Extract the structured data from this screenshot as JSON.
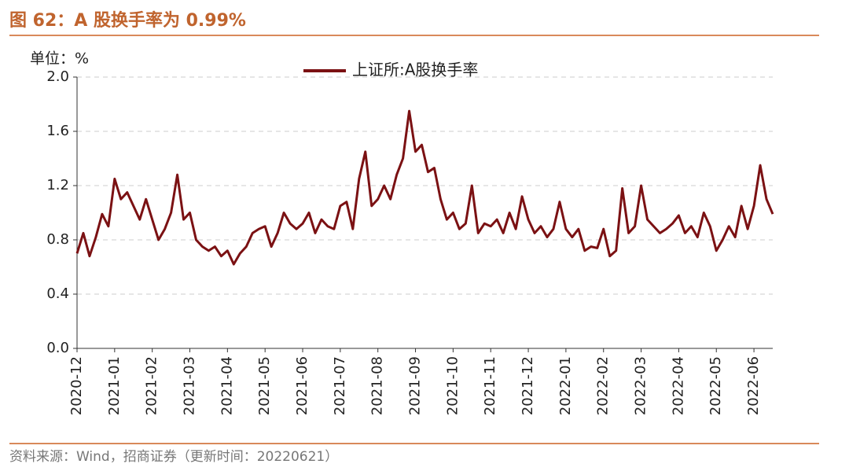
{
  "header": {
    "title": "图 62：A 股换手率为 0.99%"
  },
  "chart_data": {
    "type": "line",
    "unit_label": "单位：%",
    "categories": [
      "2020-12",
      null,
      null,
      null,
      null,
      null,
      "2021-01",
      null,
      null,
      null,
      null,
      null,
      "2021-02",
      null,
      null,
      null,
      null,
      null,
      "2021-03",
      null,
      null,
      null,
      null,
      null,
      "2021-04",
      null,
      null,
      null,
      null,
      null,
      "2021-05",
      null,
      null,
      null,
      null,
      null,
      "2021-06",
      null,
      null,
      null,
      null,
      null,
      "2021-07",
      null,
      null,
      null,
      null,
      null,
      "2021-08",
      null,
      null,
      null,
      null,
      null,
      "2021-09",
      null,
      null,
      null,
      null,
      null,
      "2021-10",
      null,
      null,
      null,
      null,
      null,
      "2021-11",
      null,
      null,
      null,
      null,
      null,
      "2021-12",
      null,
      null,
      null,
      null,
      null,
      "2022-01",
      null,
      null,
      null,
      null,
      null,
      "2022-02",
      null,
      null,
      null,
      null,
      null,
      "2022-03",
      null,
      null,
      null,
      null,
      null,
      "2022-04",
      null,
      null,
      null,
      null,
      null,
      "2022-05",
      null,
      null,
      null,
      null,
      null,
      "2022-06",
      null,
      null,
      null
    ],
    "series": [
      {
        "name": "上证所:A股换手率",
        "color": "#7b1113",
        "values": [
          0.7,
          0.85,
          0.68,
          0.82,
          0.99,
          0.9,
          1.25,
          1.1,
          1.15,
          1.05,
          0.95,
          1.1,
          0.95,
          0.8,
          0.88,
          1.0,
          1.28,
          0.95,
          1.0,
          0.8,
          0.75,
          0.72,
          0.75,
          0.68,
          0.72,
          0.62,
          0.7,
          0.75,
          0.85,
          0.88,
          0.9,
          0.75,
          0.85,
          1.0,
          0.92,
          0.88,
          0.92,
          1.0,
          0.85,
          0.95,
          0.9,
          0.88,
          1.05,
          1.08,
          0.88,
          1.25,
          1.45,
          1.05,
          1.1,
          1.2,
          1.1,
          1.28,
          1.4,
          1.75,
          1.45,
          1.5,
          1.3,
          1.33,
          1.1,
          0.95,
          1.0,
          0.88,
          0.92,
          1.2,
          0.85,
          0.92,
          0.9,
          0.95,
          0.85,
          1.0,
          0.88,
          1.12,
          0.95,
          0.85,
          0.9,
          0.82,
          0.88,
          1.08,
          0.88,
          0.82,
          0.88,
          0.72,
          0.75,
          0.74,
          0.88,
          0.68,
          0.72,
          1.18,
          0.85,
          0.9,
          1.2,
          0.95,
          0.9,
          0.85,
          0.88,
          0.92,
          0.98,
          0.85,
          0.9,
          0.82,
          1.0,
          0.9,
          0.72,
          0.8,
          0.9,
          0.82,
          1.05,
          0.88,
          1.05,
          1.35,
          1.1,
          0.99
        ]
      }
    ],
    "ylim": [
      0,
      2.0
    ],
    "yticks": [
      {
        "value": 0,
        "label": "0.0"
      },
      0.4,
      0.8,
      1.2,
      1.6,
      {
        "value": 2,
        "label": "2.0"
      }
    ],
    "grid": true,
    "legend": "top"
  },
  "footer": {
    "source": "资料来源：Wind，招商证券（更新时间：20220621）"
  }
}
